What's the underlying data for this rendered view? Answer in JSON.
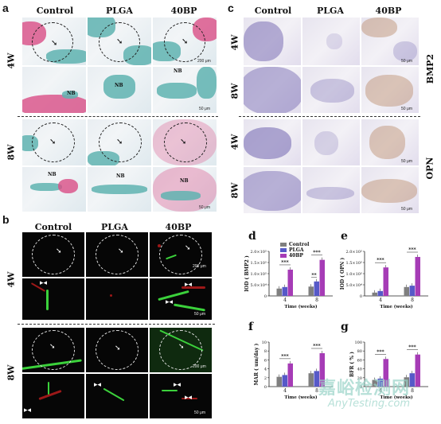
{
  "panels": {
    "a": {
      "letter": "a",
      "cols": [
        "Control",
        "PLGA",
        "40BP"
      ],
      "rows": [
        "4W",
        "8W"
      ],
      "nb": "NB",
      "scale": "50 μm",
      "scale_big": "200 μm"
    },
    "b": {
      "letter": "b",
      "cols": [
        "Control",
        "PLGA",
        "40BP"
      ],
      "rows": [
        "4W",
        "8W"
      ],
      "scale": "200 μm",
      "scale_small": "50 μm"
    },
    "c": {
      "letter": "c",
      "cols": [
        "Control",
        "PLGA",
        "40BP"
      ],
      "rows": [
        "4W",
        "8W",
        "4W",
        "8W"
      ],
      "side": [
        "BMP2",
        "OPN"
      ],
      "scale": "50 μm"
    }
  },
  "legend": [
    "Control",
    "PLGA",
    "40BP"
  ],
  "colors": {
    "control": "#7f7f7f",
    "plga": "#5659c8",
    "bp40": "#a63cb6"
  },
  "chart_data": [
    {
      "panel": "d",
      "type": "bar",
      "ylabel": "IOD ( BMP2 )",
      "xlabel": "Time (weeks)",
      "categories": [
        "4",
        "8"
      ],
      "yticks": [
        "0",
        "5.0×10⁴",
        "1.0×10⁵",
        "1.5×10⁵",
        "2.0×10⁵"
      ],
      "ylim": [
        0,
        200000
      ],
      "series": [
        {
          "name": "Control",
          "values": [
            33000,
            42000
          ]
        },
        {
          "name": "PLGA",
          "values": [
            40000,
            65000
          ]
        },
        {
          "name": "40BP",
          "values": [
            118000,
            162000
          ]
        }
      ],
      "sig": [
        "***",
        "***",
        "***",
        "**"
      ]
    },
    {
      "panel": "e",
      "type": "bar",
      "ylabel": "IOD ( OPN )",
      "xlabel": "Time (weeks)",
      "categories": [
        "4",
        "8"
      ],
      "yticks": [
        "0",
        "5.0×10⁴",
        "1.0×10⁵",
        "1.5×10⁵",
        "2.0×10⁵"
      ],
      "ylim": [
        0,
        200000
      ],
      "series": [
        {
          "name": "Control",
          "values": [
            15000,
            40000
          ]
        },
        {
          "name": "PLGA",
          "values": [
            22000,
            46000
          ]
        },
        {
          "name": "40BP",
          "values": [
            128000,
            175000
          ]
        }
      ],
      "sig": [
        "***",
        "***"
      ]
    },
    {
      "panel": "f",
      "type": "bar",
      "ylabel": "MAR ( um/day )",
      "xlabel": "Time (weeks)",
      "categories": [
        "4",
        "8"
      ],
      "yticks": [
        "0",
        "2",
        "4",
        "6",
        "8",
        "10"
      ],
      "ylim": [
        0,
        10
      ],
      "series": [
        {
          "name": "Control",
          "values": [
            2.2,
            3.0
          ]
        },
        {
          "name": "PLGA",
          "values": [
            2.6,
            3.5
          ]
        },
        {
          "name": "40BP",
          "values": [
            5.2,
            7.5
          ]
        }
      ],
      "sig": [
        "***",
        "***"
      ]
    },
    {
      "panel": "g",
      "type": "bar",
      "ylabel": "BFR ( % )",
      "xlabel": "Time (weeks)",
      "categories": [
        "4",
        "8"
      ],
      "yticks": [
        "0",
        "20",
        "40",
        "60",
        "80",
        "100"
      ],
      "ylim": [
        0,
        100
      ],
      "series": [
        {
          "name": "Control",
          "values": [
            15,
            21
          ]
        },
        {
          "name": "PLGA",
          "values": [
            18,
            30
          ]
        },
        {
          "name": "40BP",
          "values": [
            62,
            72
          ]
        }
      ],
      "sig": [
        "***",
        "***"
      ]
    }
  ],
  "watermark": {
    "cn": "嘉峪检测网",
    "en": "AnyTesting.com"
  }
}
